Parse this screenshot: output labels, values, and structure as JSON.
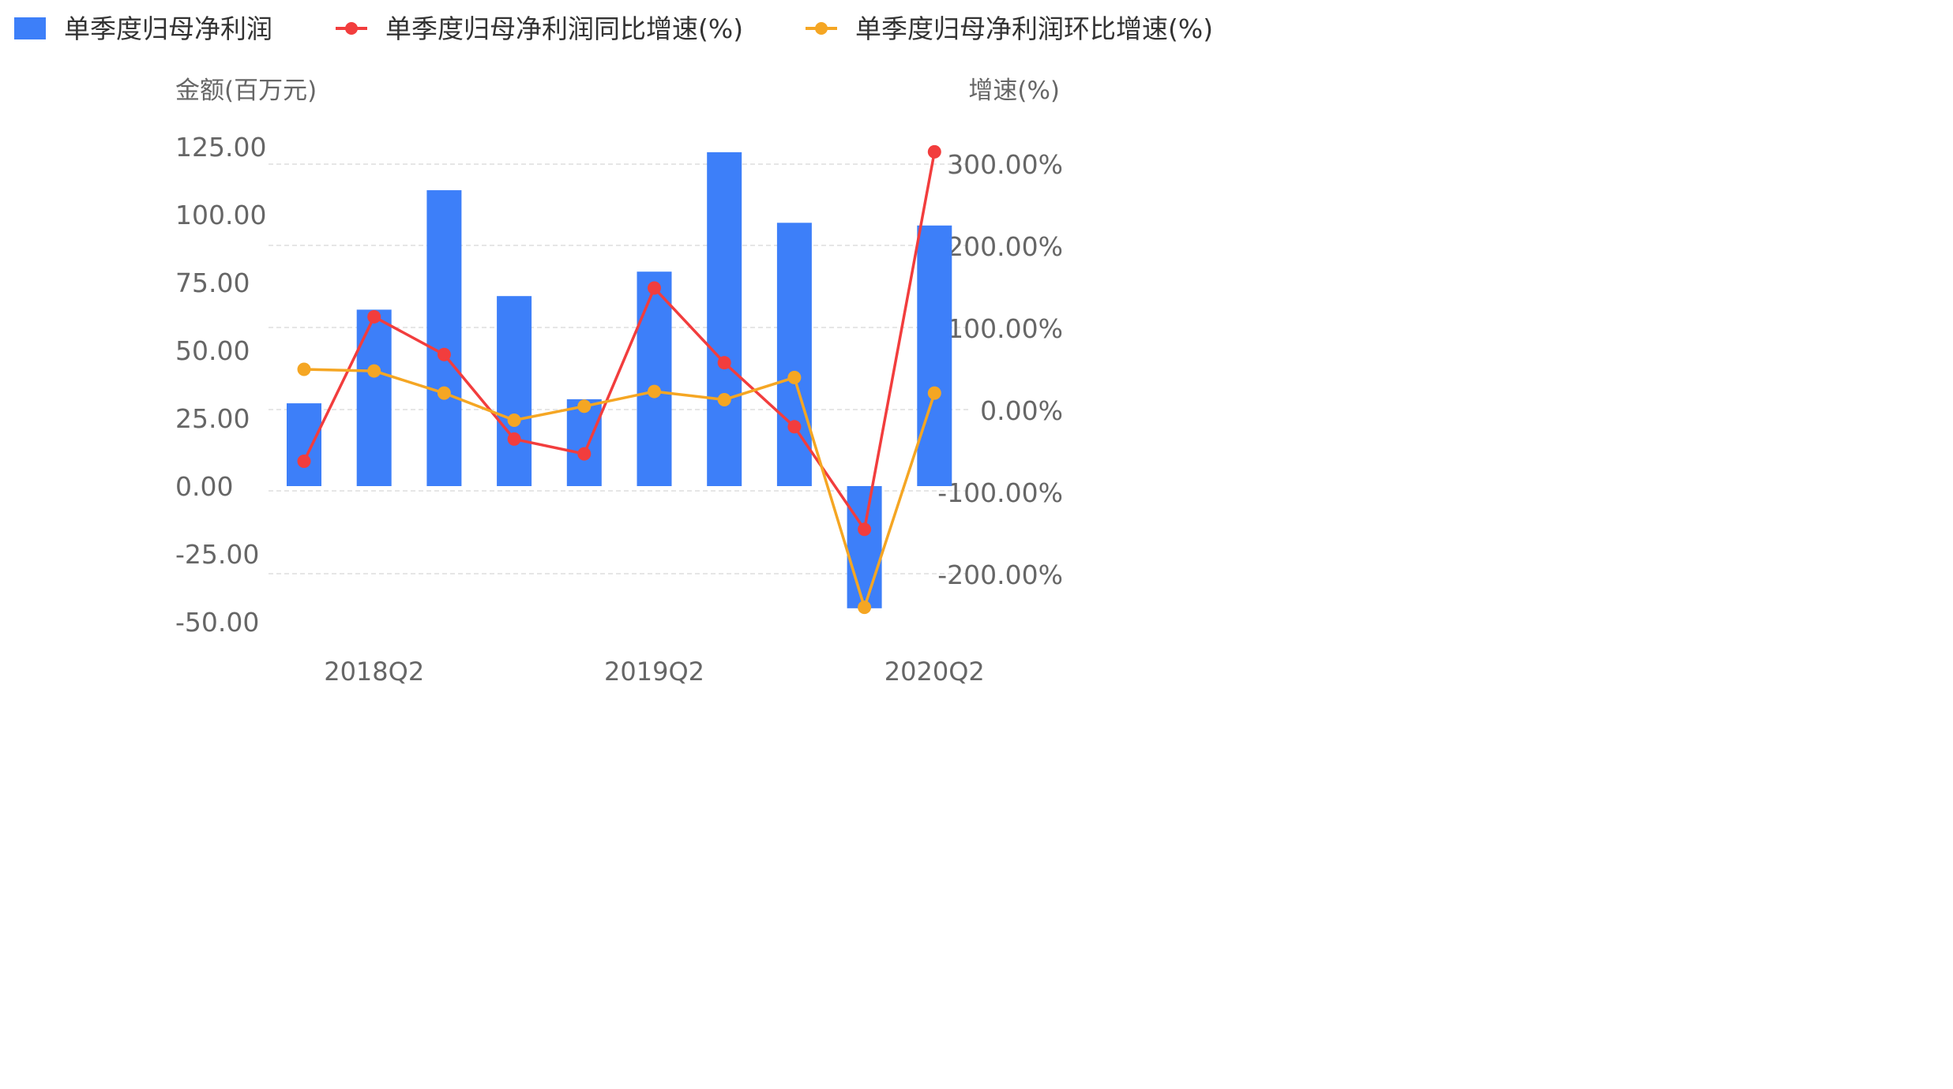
{
  "chart_data": {
    "type": "bar",
    "legend": [
      {
        "label": "单季度归母净利润",
        "color": "#3d7ff9",
        "kind": "bar"
      },
      {
        "label": "单季度归母净利润同比增速(%)",
        "color": "#f23d3d",
        "kind": "line"
      },
      {
        "label": "单季度归母净利润环比增速(%)",
        "color": "#f5a623",
        "kind": "line"
      }
    ],
    "left_axis": {
      "title": "金额(百万元)",
      "ticks": [
        "125.00",
        "100.00",
        "75.00",
        "50.00",
        "25.00",
        "0.00",
        "-25.00",
        "-50.00"
      ],
      "range": [
        -50,
        125
      ]
    },
    "right_axis": {
      "title": "增速(%)",
      "ticks": [
        "300.00%",
        "200.00%",
        "100.00%",
        "0.00%",
        "-100.00%",
        "-200.00%"
      ],
      "range": [
        -280,
        310
      ]
    },
    "x_labels": [
      {
        "index": 1,
        "label": "2018Q2"
      },
      {
        "index": 5,
        "label": "2019Q2"
      },
      {
        "index": 9,
        "label": "2020Q2"
      }
    ],
    "bar_series": {
      "name": "单季度归母净利润",
      "values": [
        30.5,
        65,
        109,
        70,
        32,
        79,
        123,
        97,
        -45,
        96
      ]
    },
    "line_series": [
      {
        "name": "单季度归母净利润同比增速(%)",
        "values": [
          -62,
          114,
          68,
          -35,
          -53,
          149,
          58,
          -20,
          -145,
          315
        ]
      },
      {
        "name": "单季度归母净利润环比增速(%)",
        "values": [
          50,
          48,
          21,
          -12,
          5,
          23,
          13,
          40,
          -240,
          21
        ]
      }
    ]
  }
}
